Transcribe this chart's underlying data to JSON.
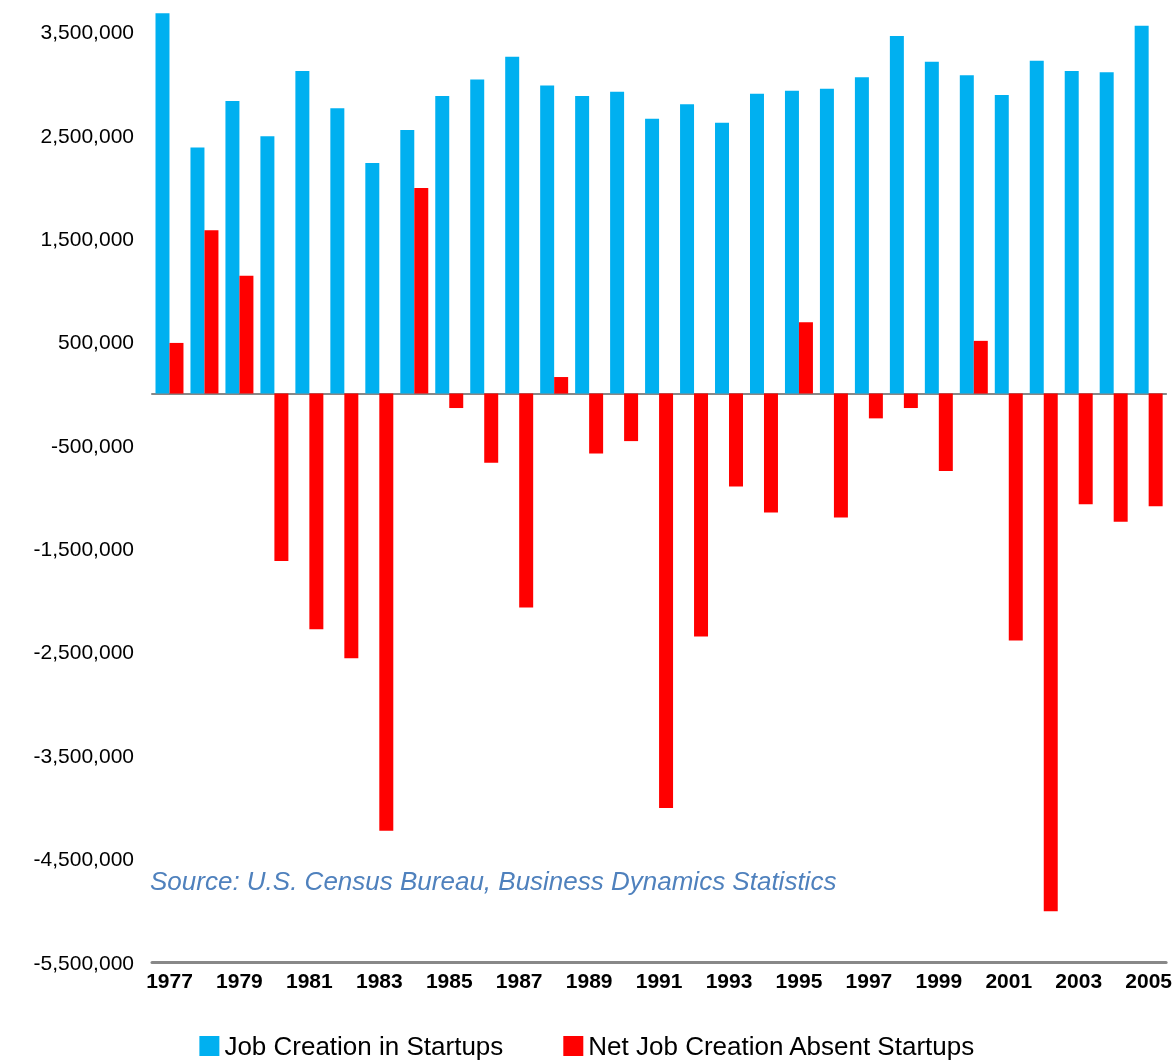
{
  "chart_data": {
    "type": "bar",
    "categories": [
      "1977",
      null,
      "1979",
      null,
      "1981",
      null,
      "1983",
      null,
      "1985",
      null,
      "1987",
      null,
      "1989",
      null,
      "1991",
      null,
      "1993",
      null,
      "1995",
      null,
      "1997",
      null,
      "1999",
      null,
      "2001",
      null,
      "2003",
      null,
      "2005"
    ],
    "series": [
      {
        "name": "Job Creation in Startups",
        "color": "#00b0f0",
        "values": [
          3680000,
          2380000,
          2830000,
          2490000,
          3120000,
          2760000,
          2230000,
          2550000,
          2880000,
          3040000,
          3260000,
          2980000,
          2880000,
          2920000,
          2660000,
          2800000,
          2620000,
          2900000,
          2930000,
          2950000,
          3060000,
          3460000,
          3210000,
          3080000,
          2890000,
          3220000,
          3120000,
          3110000,
          3560000
        ]
      },
      {
        "name": "Net Job Creation Absent Startups",
        "color": "#ff0000",
        "values": [
          490000,
          1580000,
          1140000,
          -1620000,
          -2280000,
          -2560000,
          -4230000,
          1990000,
          -140000,
          -670000,
          -2070000,
          160000,
          -580000,
          -460000,
          -4010000,
          -2350000,
          -900000,
          -1150000,
          690000,
          -1200000,
          -240000,
          -140000,
          -750000,
          510000,
          -2390000,
          -5010000,
          -1070000,
          -1240000,
          -1090000
        ]
      }
    ],
    "ylim": [
      -5500000,
      3750000
    ],
    "yticks": [
      {
        "value": -5500000,
        "label": "-5,500,000"
      },
      {
        "value": -4500000,
        "label": "-4,500,000"
      },
      {
        "value": -3500000,
        "label": "-3,500,000"
      },
      {
        "value": -2500000,
        "label": "-2,500,000"
      },
      {
        "value": -1500000,
        "label": "-1,500,000"
      },
      {
        "value": -500000,
        "label": "-500,000"
      },
      {
        "value": 500000,
        "label": "500,000"
      },
      {
        "value": 1500000,
        "label": "1,500,000"
      },
      {
        "value": 2500000,
        "label": "2,500,000"
      },
      {
        "value": 3500000,
        "label": "3,500,000"
      }
    ],
    "annotations": [
      "Source: U.S. Census Bureau, Business Dynamics Statistics"
    ],
    "legend": "bottom",
    "grid": false
  }
}
